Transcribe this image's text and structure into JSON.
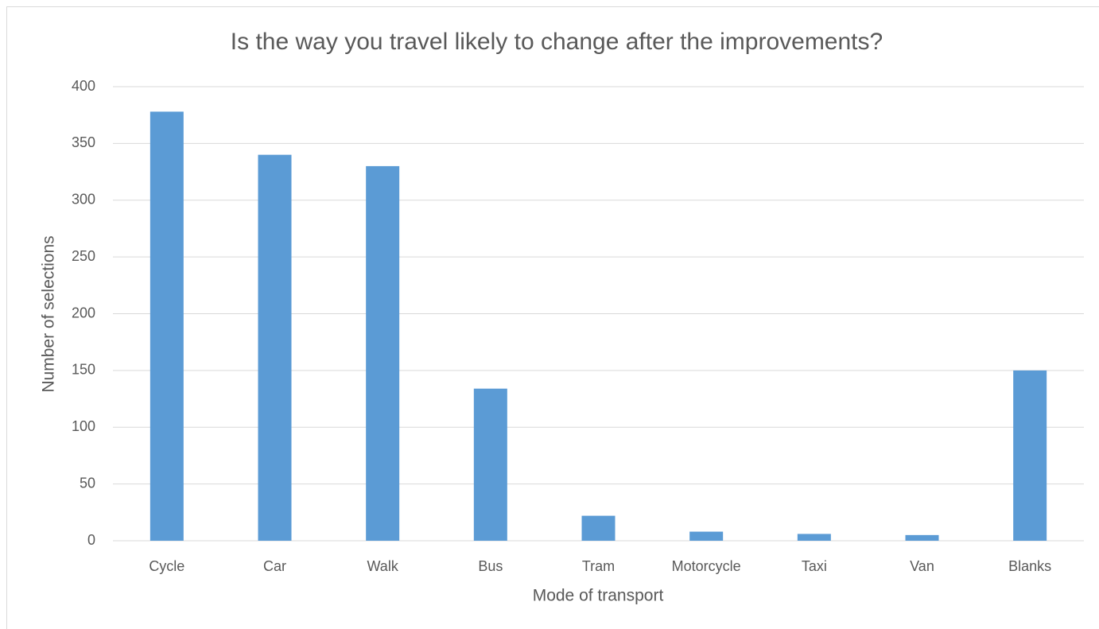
{
  "chart_data": {
    "type": "bar",
    "title": "Is the way you travel likely to change after the improvements?",
    "x_label": "Mode of transport",
    "y_label": "Number of selections",
    "categories": [
      "Cycle",
      "Car",
      "Walk",
      "Bus",
      "Tram",
      "Motorcycle",
      "Taxi",
      "Van",
      "Blanks"
    ],
    "values": [
      378,
      340,
      330,
      134,
      22,
      8,
      6,
      5,
      150
    ],
    "color": "#5b9bd5",
    "ylim": [
      0,
      400
    ],
    "yticks": [
      0,
      50,
      100,
      150,
      200,
      250,
      300,
      350,
      400
    ],
    "grid": true
  }
}
